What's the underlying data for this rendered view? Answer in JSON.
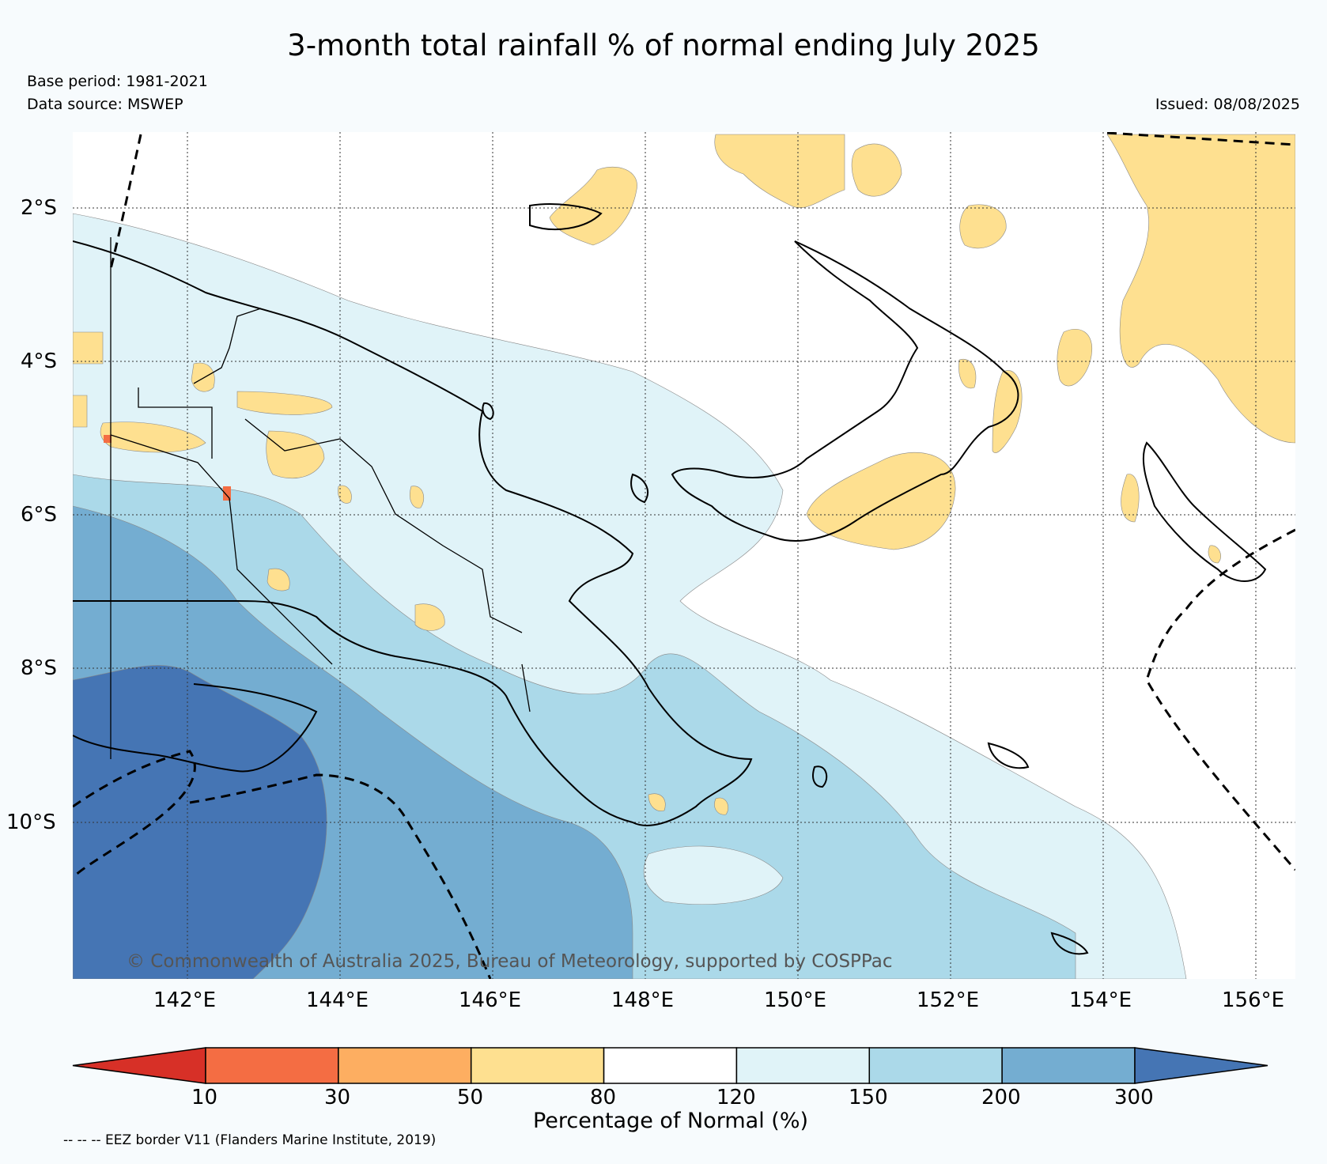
{
  "title": "3-month total rainfall % of normal ending July 2025",
  "base_period": "Base period: 1981-2021",
  "data_source": "Data source: MSWEP",
  "issued": "Issued: 08/08/2025",
  "copyright": "© Commonwealth of Australia 2025, Bureau of Meteorology, supported by COSPPac",
  "lat_labels": [
    "2°S",
    "4°S",
    "6°S",
    "8°S",
    "10°S"
  ],
  "lon_labels": [
    "142°E",
    "144°E",
    "146°E",
    "148°E",
    "150°E",
    "152°E",
    "154°E",
    "156°E"
  ],
  "legend": {
    "title": "Percentage of Normal (%)",
    "ticks": [
      "10",
      "30",
      "50",
      "80",
      "120",
      "150",
      "200",
      "300"
    ],
    "colors": [
      "#d73027",
      "#f46d43",
      "#fdae61",
      "#fee090",
      "#ffffff",
      "#e0f3f8",
      "#abd9e9",
      "#74add1",
      "#4575b4"
    ]
  },
  "eez_note": "-- -- -- EEZ border V11 (Flanders Marine Institute, 2019)",
  "colors": {
    "background": "#f7fbfd",
    "ocean": "#ffffff",
    "below_normal": "#fee090",
    "light_above": "#e0f3f8",
    "above": "#abd9e9",
    "much_above": "#74add1",
    "extreme": "#4575b4"
  }
}
